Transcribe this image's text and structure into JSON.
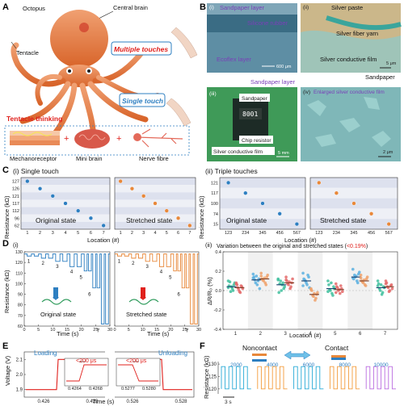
{
  "panels": {
    "a": "A",
    "b": "B",
    "c": "C",
    "d": "D",
    "e": "E",
    "f": "F"
  },
  "panel_a": {
    "octopus": "Octopus",
    "central_brain": "Central brain",
    "tentacle": "Tentacle",
    "multiple_touches": "Multiple touches",
    "single_touch": "Single touch",
    "tentacle_thinking": "Tentacle thinking",
    "mechanoreceptor": "Mechanoreceptor",
    "mini_brain": "Mini brain",
    "nerve_fibre": "Nerve fibre"
  },
  "panel_b": {
    "i": "(i)",
    "ii": "(ii)",
    "iii": "(iii)",
    "iv": "(iv)",
    "sandpaper_layer": "Sandpaper layer",
    "silicone_rubber": "Silicone rubber",
    "ecoflex_layer": "Ecoflex layer",
    "scale_i": "600 μm",
    "silver_paste": "Silver paste",
    "silver_fiber_yarn": "Silver fiber yarn",
    "silver_conductive_film": "Silver conductive film",
    "scale_ii": "5 μm",
    "sandpaper": "Sandpaper",
    "sandpaper_layer_2": "Sandpaper layer",
    "sandpaper_3": "Sandpaper",
    "chip_resistor": "Chip resistor",
    "silver_conductive_film_3": "Silver conductive film",
    "scale_iii": "5 mm",
    "enlarged_film": "Enlarged silver conductive film",
    "scale_iv": "2 μm",
    "chip_code": "8001"
  },
  "panel_c": {
    "title_i": "(i) Single touch",
    "title_ii": "(ii) Triple touches",
    "ylabel": "Resistance (kΩ)",
    "xlabel": "Location (#)",
    "original": "Original state",
    "stretched": "Stretched state"
  },
  "panel_d": {
    "label_i": "(i)",
    "label_ii": "(ii)",
    "ylabel_i": "Resistance (kΩ)",
    "xlabel_i": "Time (s)",
    "original": "Original state",
    "stretched": "Stretched state",
    "title_ii_a": "Variation between the original and stretched states (",
    "title_ii_b": "<0.19%",
    "title_ii_c": ")",
    "ylabel_ii": "ΔR/R₀ (%)",
    "xlabel_ii": "Location (#)"
  },
  "panel_e": {
    "ylabel": "Voltage (V)",
    "xlabel": "Time (s)",
    "loading": "Loading",
    "unloading": "Unloading",
    "rise": "<200 μs",
    "fall": "<200 μs",
    "inset_ticks_1": [
      "0.4264",
      "0.4268"
    ],
    "inset_ticks_2": [
      "0.5277",
      "0.5280"
    ]
  },
  "panel_f": {
    "ylabel": "Resistance (kΩ)",
    "noncontact": "Noncontact",
    "contact": "Contact",
    "scale": "3 s"
  },
  "colors": {
    "blue": "#2e7fc1",
    "orange": "#e8883a",
    "red": "#e0201c",
    "cyan": "#27a9d6",
    "octopus": "#e27a3f"
  },
  "chart_data": [
    {
      "id": "C-i-original",
      "type": "scatter",
      "title": "(i) Single touch",
      "x": [
        1,
        2,
        3,
        4,
        5,
        6,
        7
      ],
      "y": [
        127,
        126,
        121,
        117,
        112,
        96,
        62
      ],
      "yticks": [
        127,
        126,
        121,
        117,
        112,
        96,
        62
      ],
      "xlabel": "Location (#)",
      "ylabel": "Resistance (kΩ)"
    },
    {
      "id": "C-i-stretched",
      "type": "scatter",
      "x": [
        1,
        2,
        3,
        4,
        5,
        6,
        7
      ],
      "y": [
        127,
        126,
        121,
        117,
        112,
        96,
        62
      ]
    },
    {
      "id": "C-ii-original",
      "type": "scatter",
      "title": "(ii) Triple touches",
      "categories": [
        "123",
        "234",
        "345",
        "456",
        "567"
      ],
      "y": [
        121,
        117,
        100,
        74,
        15
      ],
      "yticks": [
        121,
        117,
        100,
        74,
        15
      ],
      "xlabel": "Location (#)",
      "ylabel": "Resistance (kΩ)"
    },
    {
      "id": "C-ii-stretched",
      "type": "scatter",
      "categories": [
        "123",
        "234",
        "345",
        "456",
        "567"
      ],
      "y": [
        121,
        117,
        100,
        74,
        15
      ]
    },
    {
      "id": "D-i",
      "type": "line",
      "ylabel": "Resistance (kΩ)",
      "xlabel": "Time (s)",
      "xlim": [
        0,
        30
      ],
      "ylim": [
        60,
        130
      ],
      "xticks": [
        0,
        5,
        10,
        15,
        20,
        25,
        30
      ],
      "yticks": [
        60,
        70,
        80,
        90,
        100,
        110,
        120,
        130
      ],
      "baseline": 128,
      "series": [
        {
          "name": "Original state",
          "pulses": [
            {
              "loc": 1,
              "t0": 1.0,
              "t1": 2.5,
              "r": 126
            },
            {
              "loc": 1,
              "t0": 3.5,
              "t1": 5.0,
              "r": 126
            },
            {
              "loc": 2,
              "t0": 6.0,
              "t1": 7.5,
              "r": 124
            },
            {
              "loc": 2,
              "t0": 8.5,
              "t1": 10.0,
              "r": 124
            },
            {
              "loc": 3,
              "t0": 11.0,
              "t1": 12.5,
              "r": 121
            },
            {
              "loc": 3,
              "t0": 13.5,
              "t1": 15.0,
              "r": 121
            },
            {
              "loc": 4,
              "t0": 16.0,
              "t1": 17.5,
              "r": 116
            },
            {
              "loc": 4,
              "t0": 18.5,
              "t1": 20.0,
              "r": 116
            },
            {
              "loc": 5,
              "t0": 21.0,
              "t1": 22.0,
              "r": 112
            },
            {
              "loc": 5,
              "t0": 22.5,
              "t1": 23.5,
              "r": 112
            },
            {
              "loc": 6,
              "t0": 24.0,
              "t1": 25.0,
              "r": 96
            },
            {
              "loc": 6,
              "t0": 25.5,
              "t1": 26.5,
              "r": 96
            },
            {
              "loc": 7,
              "t0": 27.0,
              "t1": 28.0,
              "r": 62
            },
            {
              "loc": 7,
              "t0": 28.5,
              "t1": 29.5,
              "r": 62
            }
          ]
        },
        {
          "name": "Stretched state",
          "pulses": [
            {
              "loc": 1,
              "t0": 1.0,
              "t1": 2.5,
              "r": 126
            },
            {
              "loc": 1,
              "t0": 3.5,
              "t1": 5.0,
              "r": 126
            },
            {
              "loc": 2,
              "t0": 6.0,
              "t1": 7.5,
              "r": 124
            },
            {
              "loc": 2,
              "t0": 8.5,
              "t1": 10.0,
              "r": 124
            },
            {
              "loc": 3,
              "t0": 11.0,
              "t1": 12.5,
              "r": 121
            },
            {
              "loc": 3,
              "t0": 13.5,
              "t1": 15.0,
              "r": 121
            },
            {
              "loc": 4,
              "t0": 16.0,
              "t1": 17.5,
              "r": 116
            },
            {
              "loc": 4,
              "t0": 18.5,
              "t1": 20.0,
              "r": 116
            },
            {
              "loc": 5,
              "t0": 21.0,
              "t1": 22.0,
              "r": 112
            },
            {
              "loc": 5,
              "t0": 22.5,
              "t1": 23.5,
              "r": 112
            },
            {
              "loc": 6,
              "t0": 24.0,
              "t1": 25.0,
              "r": 96
            },
            {
              "loc": 6,
              "t0": 25.5,
              "t1": 26.5,
              "r": 96
            },
            {
              "loc": 7,
              "t0": 27.0,
              "t1": 28.0,
              "r": 62
            },
            {
              "loc": 7,
              "t0": 28.5,
              "t1": 29.5,
              "r": 62
            }
          ]
        }
      ]
    },
    {
      "id": "D-ii",
      "type": "scatter",
      "title": "Variation between the original and stretched states (<0.19%)",
      "categories": [
        "1",
        "2",
        "3",
        "4",
        "5",
        "6",
        "7"
      ],
      "ylim": [
        -0.4,
        0.4
      ],
      "yticks": [
        -0.4,
        -0.2,
        0.0,
        0.2,
        0.4
      ],
      "xlabel": "Location (#)",
      "ylabel": "ΔR/R₀ (%)",
      "series": [
        {
          "name": "Original state",
          "means": [
            0.04,
            0.11,
            0.06,
            0.1,
            0.02,
            0.14,
            0.03
          ],
          "points": [
            [
              0.1,
              0.06,
              0.02,
              -0.01,
              0.05,
              0.08,
              0.0,
              0.04,
              0.09,
              0.03
            ],
            [
              0.17,
              0.12,
              0.06,
              0.08,
              0.14,
              0.02,
              0.1,
              0.15,
              0.11,
              0.13
            ],
            [
              0.12,
              0.02,
              0.06,
              0.1,
              -0.02,
              0.04,
              0.08,
              0.0,
              0.07,
              0.11
            ],
            [
              0.18,
              0.14,
              0.06,
              0.1,
              0.12,
              0.03,
              0.16,
              0.08,
              0.11,
              0.05
            ],
            [
              0.1,
              0.04,
              -0.03,
              0.0,
              0.06,
              0.02,
              -0.05,
              0.08,
              0.01,
              -0.01
            ],
            [
              0.22,
              0.17,
              0.1,
              0.14,
              0.12,
              0.19,
              0.08,
              0.15,
              0.16,
              0.13
            ],
            [
              0.1,
              0.04,
              -0.04,
              0.0,
              0.07,
              0.03,
              -0.02,
              0.06,
              0.02,
              0.05
            ]
          ]
        },
        {
          "name": "Stretched state",
          "means": [
            0.03,
            0.12,
            0.08,
            -0.04,
            0.01,
            0.1,
            0.04
          ],
          "points": [
            [
              0.08,
              0.04,
              -0.02,
              0.01,
              0.06,
              0.02,
              0.05,
              -0.01,
              0.03,
              0.07
            ],
            [
              0.18,
              0.14,
              0.08,
              0.1,
              0.12,
              0.16,
              0.06,
              0.13,
              0.11,
              0.15
            ],
            [
              0.14,
              0.08,
              0.02,
              0.06,
              0.1,
              0.12,
              0.04,
              0.09,
              0.07,
              0.11
            ],
            [
              0.02,
              -0.04,
              -0.1,
              -0.06,
              0.0,
              -0.02,
              -0.08,
              -0.03,
              -0.05,
              0.01
            ],
            [
              0.07,
              0.02,
              -0.03,
              0.0,
              0.04,
              -0.01,
              0.05,
              0.01,
              0.03,
              -0.02
            ],
            [
              0.16,
              0.12,
              0.06,
              0.08,
              0.1,
              0.14,
              0.05,
              0.11,
              0.09,
              0.13
            ],
            [
              0.1,
              0.06,
              0.0,
              0.03,
              0.08,
              0.02,
              0.05,
              -0.01,
              0.04,
              0.07
            ]
          ]
        }
      ]
    },
    {
      "id": "E",
      "type": "line",
      "ylabel": "Voltage (V)",
      "xlabel": "Time (s)",
      "yticks": [
        1.9,
        2.0,
        2.1
      ],
      "ylim": [
        1.85,
        2.15
      ],
      "xticks_1": [
        0.426,
        0.428
      ],
      "xticks_2": [
        0.526,
        0.528
      ],
      "low": 1.9,
      "high": 2.1
    },
    {
      "id": "F",
      "type": "line",
      "ylabel": "Resistance (kΩ)",
      "yticks": [
        120,
        125,
        130
      ],
      "ylim": [
        118,
        131
      ],
      "groups": [
        "2000",
        "4000",
        "6000",
        "8000",
        "10000"
      ]
    }
  ]
}
